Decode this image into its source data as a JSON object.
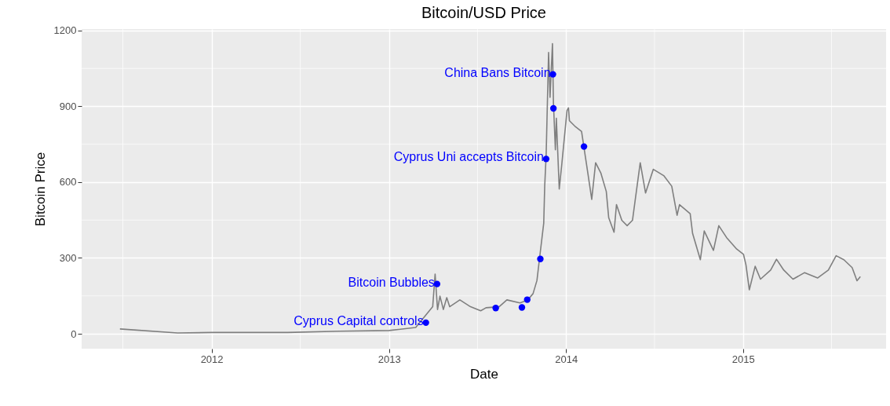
{
  "chart_data": {
    "type": "line",
    "title": "Bitcoin/USD Price",
    "xlabel": "Date",
    "ylabel": "Bitcoin Price",
    "xlim": [
      "2011-04-08",
      "2015-10-23"
    ],
    "xticks": [
      "2012",
      "2013",
      "2014",
      "2015"
    ],
    "ylim": [
      -59,
      1206
    ],
    "yticks": [
      0,
      300,
      600,
      900,
      1200
    ],
    "grid": true,
    "series": [
      {
        "color": "#7f7f7f",
        "x": [
          "2011-06-26",
          "2011-10-23",
          "2012-01-01",
          "2012-06-06",
          "2012-09-20",
          "2013-01-01",
          "2013-02-25",
          "2013-04-01",
          "2013-04-06",
          "2013-04-11",
          "2013-04-16",
          "2013-04-23",
          "2013-04-30",
          "2013-05-06",
          "2013-05-27",
          "2013-06-18",
          "2013-07-09",
          "2013-07-20",
          "2013-08-16",
          "2013-09-01",
          "2013-09-28",
          "2013-10-14",
          "2013-10-25",
          "2013-11-02",
          "2013-11-07",
          "2013-11-16",
          "2013-11-18",
          "2013-11-21",
          "2013-11-26",
          "2013-11-29",
          "2013-12-04",
          "2013-12-06",
          "2013-12-10",
          "2013-12-12",
          "2013-12-18",
          "2013-12-23",
          "2014-01-03",
          "2014-01-06",
          "2014-01-08",
          "2014-01-19",
          "2014-02-02",
          "2014-02-15",
          "2014-02-23",
          "2014-03-03",
          "2014-03-14",
          "2014-03-25",
          "2014-03-30",
          "2014-04-10",
          "2014-04-15",
          "2014-04-26",
          "2014-05-07",
          "2014-05-18",
          "2014-05-26",
          "2014-06-03",
          "2014-06-14",
          "2014-06-30",
          "2014-07-22",
          "2014-08-07",
          "2014-08-18",
          "2014-08-23",
          "2014-09-14",
          "2014-09-19",
          "2014-10-05",
          "2014-10-13",
          "2014-11-01",
          "2014-11-12",
          "2014-11-28",
          "2014-12-19",
          "2015-01-02",
          "2015-01-07",
          "2015-01-14",
          "2015-01-26",
          "2015-02-06",
          "2015-02-27",
          "2015-03-11",
          "2015-03-26",
          "2015-04-14",
          "2015-05-08",
          "2015-06-04",
          "2015-06-26",
          "2015-07-12",
          "2015-07-28",
          "2015-08-14",
          "2015-08-24",
          "2015-08-31"
        ],
        "values": [
          19,
          3,
          5,
          5,
          10,
          13,
          25,
          107,
          236,
          96,
          149,
          96,
          143,
          107,
          134,
          107,
          91,
          103,
          107,
          134,
          122,
          134,
          159,
          211,
          293,
          438,
          584,
          709,
          1113,
          936,
          1148,
          915,
          728,
          853,
          573,
          666,
          884,
          894,
          843,
          822,
          801,
          635,
          532,
          677,
          635,
          563,
          459,
          402,
          511,
          449,
          428,
          449,
          563,
          677,
          557,
          651,
          625,
          584,
          469,
          511,
          475,
          397,
          293,
          407,
          330,
          428,
          381,
          335,
          314,
          273,
          174,
          267,
          216,
          252,
          295,
          252,
          216,
          242,
          221,
          252,
          309,
          293,
          262,
          210,
          226
        ]
      },
      {
        "type": "scatter",
        "marker": "circle",
        "color": "#0000ff",
        "x": [
          "2013-03-18",
          "2013-04-10",
          "2013-08-09",
          "2013-10-02",
          "2013-10-13",
          "2013-11-09",
          "2013-11-21",
          "2013-12-05",
          "2013-12-06",
          "2014-02-07"
        ],
        "values": [
          44,
          197,
          102,
          104,
          135,
          296,
          692,
          1027,
          892,
          741
        ]
      }
    ],
    "annotations": [
      {
        "text": "Cyprus Capital controls",
        "x": "2013-03-18",
        "y": 44
      },
      {
        "text": "Bitcoin Bubbles",
        "x": "2013-04-10",
        "y": 197
      },
      {
        "text": "Cyprus Uni accepts Bitcoin",
        "x": "2013-11-21",
        "y": 692
      },
      {
        "text": "China Bans Bitcoin",
        "x": "2013-12-05",
        "y": 1027
      }
    ]
  }
}
